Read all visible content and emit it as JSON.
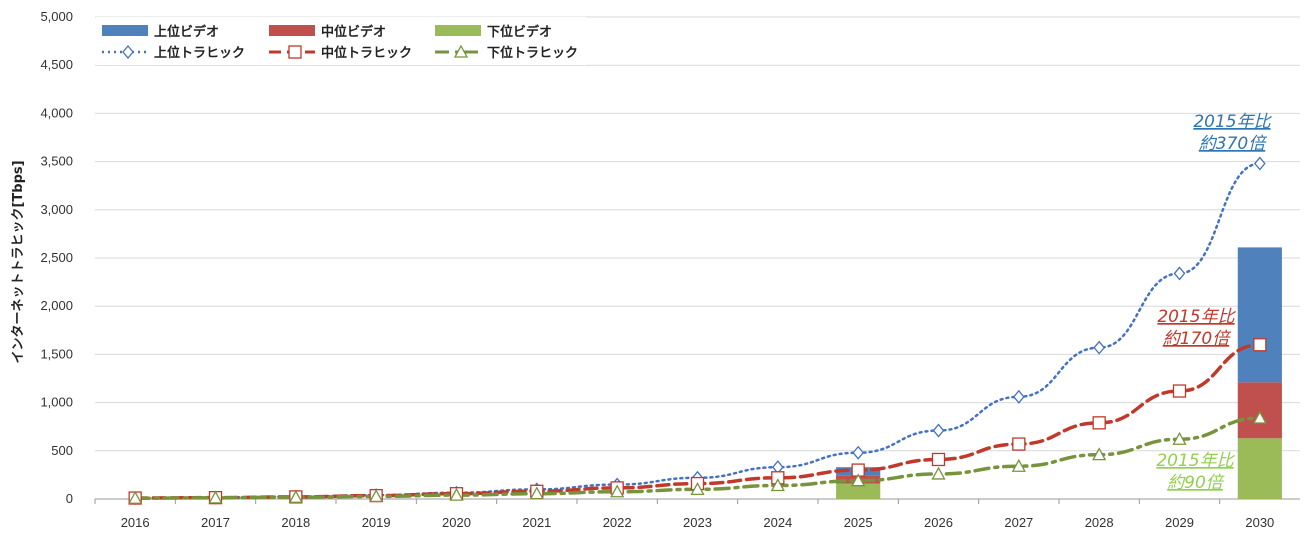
{
  "chart_data": {
    "type": "bar",
    "ylabel": "インターネットトラヒック[Tbps]",
    "ylim": [
      0,
      5000
    ],
    "yticks": [
      0,
      500,
      1000,
      1500,
      2000,
      2500,
      3000,
      3500,
      4000,
      4500,
      5000
    ],
    "ytick_labels": [
      "0",
      "500",
      "1,000",
      "1,500",
      "2,000",
      "2,500",
      "3,000",
      "3,500",
      "4,000",
      "4,500",
      "5,000"
    ],
    "categories": [
      "2016",
      "2017",
      "2018",
      "2019",
      "2020",
      "2021",
      "2022",
      "2023",
      "2024",
      "2025",
      "2026",
      "2027",
      "2028",
      "2029",
      "2030"
    ],
    "grid": true,
    "legend_position": "top-left",
    "bar_series": [
      {
        "name": "上位ビデオ",
        "color": "#4f81bd",
        "values": {
          "2025": 90,
          "2030": 1400
        }
      },
      {
        "name": "中位ビデオ",
        "color": "#c0504d",
        "values": {
          "2025": 80,
          "2030": 580
        }
      },
      {
        "name": "下位ビデオ",
        "color": "#9bbb59",
        "values": {
          "2025": 160,
          "2030": 630
        }
      }
    ],
    "line_series": [
      {
        "name": "上位トラヒック",
        "color": "#4472c4",
        "style": "dotted",
        "marker": "diamond",
        "values": [
          10,
          15,
          25,
          40,
          65,
          100,
          150,
          220,
          330,
          480,
          710,
          1060,
          1570,
          2340,
          3480
        ]
      },
      {
        "name": "中位トラヒック",
        "color": "#c0392b",
        "style": "dashed",
        "marker": "square",
        "values": [
          10,
          14,
          22,
          35,
          55,
          80,
          115,
          160,
          220,
          300,
          410,
          570,
          790,
          1120,
          1600
        ]
      },
      {
        "name": "下位トラヒック",
        "color": "#77933c",
        "style": "dash-dot",
        "marker": "triangle",
        "values": [
          8,
          12,
          18,
          27,
          40,
          55,
          75,
          100,
          140,
          190,
          260,
          340,
          460,
          620,
          840
        ]
      }
    ],
    "annotations": [
      {
        "lines": [
          "2015年比",
          "約370倍"
        ],
        "color": "#2e75b6"
      },
      {
        "lines": [
          "2015年比",
          "約170倍"
        ],
        "color": "#c0392b"
      },
      {
        "lines": [
          "2015年比",
          "約90倍"
        ],
        "color": "#92d050"
      }
    ]
  }
}
